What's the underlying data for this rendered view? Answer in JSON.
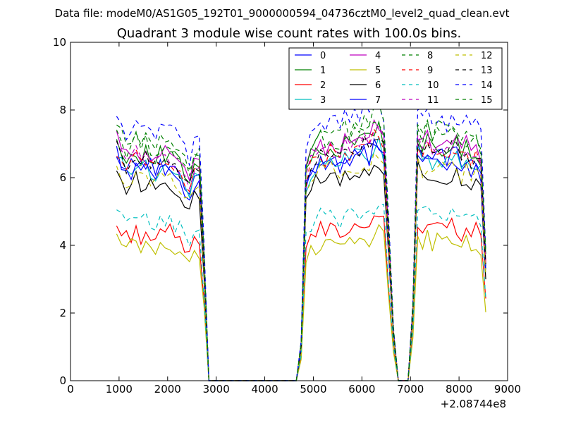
{
  "header": {
    "data_file": "Data file: modeM0/AS1G05_192T01_9000000594_04736cztM0_level2_quad_clean.evt"
  },
  "chart_data": {
    "type": "line",
    "title": "Quadrant 3 module wise count rates with 100.0s bins.",
    "xlabel": "",
    "ylabel": "",
    "x_offset_label": "+2.08744e8",
    "xlim": [
      0,
      9000
    ],
    "ylim": [
      0,
      10
    ],
    "xticks": [
      0,
      1000,
      2000,
      3000,
      4000,
      5000,
      6000,
      7000,
      8000,
      9000
    ],
    "yticks": [
      0,
      2,
      4,
      6,
      8,
      10
    ],
    "legend_location": "upper-right",
    "legend_columns": 4,
    "x": [
      950,
      1050,
      1150,
      1250,
      1350,
      1450,
      1550,
      1650,
      1750,
      1850,
      1950,
      2050,
      2150,
      2250,
      2350,
      2450,
      2550,
      2650,
      2750,
      2850,
      2950,
      3050,
      3150,
      3250,
      3350,
      3450,
      3550,
      3650,
      3750,
      3850,
      3950,
      4050,
      4150,
      4250,
      4350,
      4450,
      4550,
      4650,
      4750,
      4850,
      4950,
      5050,
      5150,
      5250,
      5350,
      5450,
      5550,
      5650,
      5750,
      5850,
      5950,
      6050,
      6150,
      6250,
      6350,
      6450,
      6550,
      6650,
      6750,
      6850,
      6950,
      7050,
      7150,
      7250,
      7350,
      7450,
      7550,
      7650,
      7750,
      7850,
      7950,
      8050,
      8150,
      8250,
      8350,
      8450,
      8550
    ],
    "base_profile": [
      1.0,
      0.95,
      0.92,
      0.94,
      0.96,
      0.93,
      0.95,
      0.93,
      0.91,
      0.94,
      0.93,
      0.95,
      0.92,
      0.9,
      0.86,
      0.82,
      0.88,
      0.9,
      0.5,
      0,
      0,
      0,
      0,
      0,
      0,
      0,
      0,
      0,
      0,
      0,
      0,
      0,
      0,
      0,
      0,
      0,
      0,
      0,
      0.15,
      0.85,
      0.92,
      0.94,
      0.97,
      0.95,
      0.98,
      0.96,
      0.94,
      0.99,
      0.97,
      1.0,
      0.99,
      1.02,
      1.0,
      1.04,
      1.05,
      1.0,
      0.6,
      0.2,
      0,
      0,
      0,
      0.3,
      1.02,
      0.97,
      1.0,
      0.96,
      0.99,
      0.97,
      0.96,
      0.99,
      0.98,
      0.95,
      0.97,
      0.94,
      0.96,
      0.92,
      0.5
    ],
    "series": [
      {
        "name": "0",
        "color": "#0000ff",
        "dash": "solid",
        "level": 6.8
      },
      {
        "name": "1",
        "color": "#008000",
        "dash": "solid",
        "level": 7.1
      },
      {
        "name": "2",
        "color": "#ff0000",
        "dash": "solid",
        "level": 4.6
      },
      {
        "name": "3",
        "color": "#00bfbf",
        "dash": "solid",
        "level": 6.7
      },
      {
        "name": "4",
        "color": "#bf00bf",
        "dash": "solid",
        "level": 7.2
      },
      {
        "name": "5",
        "color": "#bfbf00",
        "dash": "solid",
        "level": 4.2
      },
      {
        "name": "6",
        "color": "#000000",
        "dash": "solid",
        "level": 6.2
      },
      {
        "name": "7",
        "color": "#0000ff",
        "dash": "solid",
        "level": 6.6
      },
      {
        "name": "8",
        "color": "#008000",
        "dash": "dashed",
        "level": 7.4
      },
      {
        "name": "9",
        "color": "#ff0000",
        "dash": "dashed",
        "level": 6.9
      },
      {
        "name": "10",
        "color": "#00bfbf",
        "dash": "dashed",
        "level": 5.0
      },
      {
        "name": "11",
        "color": "#bf00bf",
        "dash": "dashed",
        "level": 7.0
      },
      {
        "name": "12",
        "color": "#bfbf00",
        "dash": "dashed",
        "level": 6.4
      },
      {
        "name": "13",
        "color": "#000000",
        "dash": "dashed",
        "level": 6.9
      },
      {
        "name": "14",
        "color": "#0000ff",
        "dash": "dashed",
        "level": 7.9
      },
      {
        "name": "15",
        "color": "#008000",
        "dash": "dashed",
        "level": 7.6
      }
    ]
  }
}
